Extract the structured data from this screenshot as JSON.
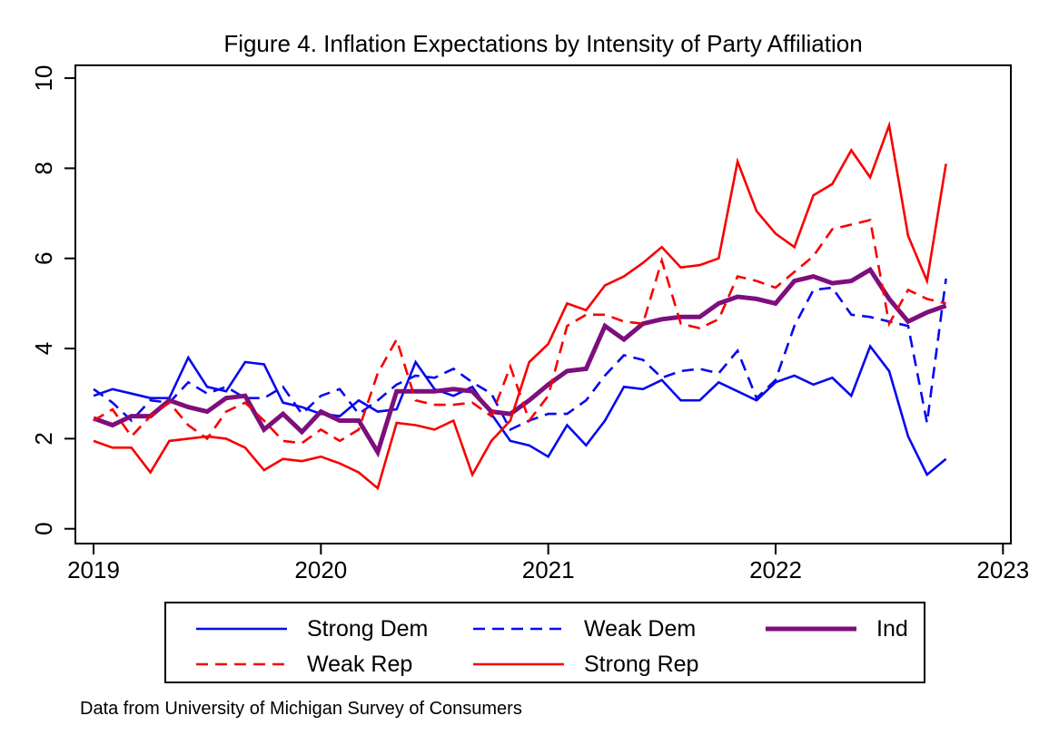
{
  "title": "Figure 4. Inflation Expectations by Intensity of Party Affiliation",
  "caption": "Data from University of Michigan Survey of Consumers",
  "axes": {
    "y_ticks": [
      0,
      2,
      4,
      6,
      8,
      10
    ],
    "x_ticks": [
      2019,
      2020,
      2021,
      2022,
      2023
    ],
    "ylim": [
      0,
      10
    ]
  },
  "chart_data": {
    "type": "line",
    "title": "Figure 4. Inflation Expectations by Intensity of Party Affiliation",
    "xlabel": "",
    "ylabel": "",
    "x_unit": "monthly",
    "x_start": "2019-01",
    "x_end": "2022-10",
    "xlim_years": [
      2019,
      2023
    ],
    "ylim": [
      0,
      10
    ],
    "grid": false,
    "legend_position": "bottom",
    "series": [
      {
        "name": "Strong Dem",
        "color": "#0808EE",
        "dash": "solid",
        "width": 2.6,
        "values": [
          2.95,
          3.1,
          3.0,
          2.9,
          2.9,
          3.8,
          3.15,
          3.05,
          3.7,
          3.65,
          2.8,
          2.7,
          2.55,
          2.5,
          2.85,
          2.6,
          2.65,
          3.7,
          3.1,
          2.95,
          3.15,
          2.55,
          1.95,
          1.85,
          1.6,
          2.3,
          1.85,
          2.4,
          3.15,
          3.1,
          3.3,
          2.85,
          2.85,
          3.25,
          3.05,
          2.85,
          3.25,
          3.4,
          3.2,
          3.35,
          2.95,
          4.05,
          3.5,
          2.05,
          1.2,
          1.55
        ]
      },
      {
        "name": "Weak Dem",
        "color": "#0808EE",
        "dash": "dashed",
        "width": 2.6,
        "values": [
          3.1,
          2.8,
          2.4,
          2.85,
          2.8,
          3.25,
          3.0,
          3.15,
          2.9,
          2.9,
          3.15,
          2.55,
          2.95,
          3.1,
          2.55,
          2.85,
          3.2,
          3.4,
          3.35,
          3.55,
          3.25,
          3.0,
          2.2,
          2.4,
          2.55,
          2.55,
          2.85,
          3.4,
          3.85,
          3.75,
          3.35,
          3.5,
          3.55,
          3.45,
          3.95,
          2.9,
          3.3,
          4.5,
          5.3,
          5.35,
          4.75,
          4.7,
          4.6,
          4.5,
          2.35,
          5.55
        ]
      },
      {
        "name": "Ind",
        "color": "#7D0F7D",
        "dash": "solid",
        "width": 5,
        "values": [
          2.45,
          2.3,
          2.5,
          2.5,
          2.85,
          2.7,
          2.6,
          2.9,
          2.95,
          2.2,
          2.55,
          2.15,
          2.6,
          2.4,
          2.4,
          1.7,
          3.05,
          3.05,
          3.05,
          3.1,
          3.05,
          2.6,
          2.55,
          2.85,
          3.2,
          3.5,
          3.55,
          4.5,
          4.2,
          4.55,
          4.65,
          4.7,
          4.7,
          5.0,
          5.15,
          5.1,
          5.0,
          5.5,
          5.6,
          5.45,
          5.5,
          5.75,
          5.1,
          4.6,
          4.8,
          4.95
        ]
      },
      {
        "name": "Weak Rep",
        "color": "#F80000",
        "dash": "dashed",
        "width": 2.6,
        "values": [
          2.4,
          2.65,
          2.05,
          2.5,
          2.8,
          2.3,
          2.0,
          2.6,
          2.8,
          2.4,
          1.95,
          1.9,
          2.2,
          1.95,
          2.2,
          3.45,
          4.2,
          2.85,
          2.75,
          2.75,
          2.8,
          2.5,
          3.6,
          2.4,
          2.95,
          4.5,
          4.75,
          4.75,
          4.6,
          4.55,
          5.95,
          4.55,
          4.45,
          4.65,
          5.6,
          5.5,
          5.35,
          5.7,
          6.05,
          6.65,
          6.75,
          6.85,
          4.55,
          5.3,
          5.1,
          5.0
        ]
      },
      {
        "name": "Strong Rep",
        "color": "#F80000",
        "dash": "solid",
        "width": 2.6,
        "values": [
          1.95,
          1.8,
          1.8,
          1.25,
          1.95,
          2.0,
          2.05,
          2.0,
          1.8,
          1.3,
          1.55,
          1.5,
          1.6,
          1.45,
          1.25,
          0.9,
          2.35,
          2.3,
          2.2,
          2.4,
          1.2,
          1.95,
          2.4,
          3.7,
          4.1,
          5.0,
          4.85,
          5.4,
          5.6,
          5.9,
          6.25,
          5.8,
          5.85,
          6.0,
          8.15,
          7.05,
          6.55,
          6.25,
          7.4,
          7.65,
          8.4,
          7.8,
          8.95,
          6.5,
          5.5,
          8.1
        ]
      }
    ],
    "legend_rows": [
      [
        0,
        1,
        2
      ],
      [
        3,
        4
      ]
    ]
  }
}
